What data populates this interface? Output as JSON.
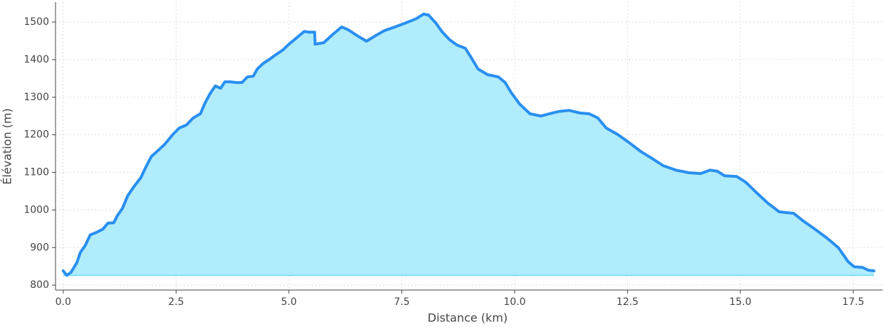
{
  "chart_data": {
    "type": "line",
    "xlabel": "Distance (km)",
    "ylabel": "Élévation (m)",
    "x": [
      0,
      0.08,
      0.17,
      0.3,
      0.38,
      0.49,
      0.6,
      0.73,
      0.88,
      0.99,
      1.12,
      1.2,
      1.31,
      1.43,
      1.56,
      1.72,
      1.83,
      1.95,
      2.1,
      2.25,
      2.43,
      2.57,
      2.73,
      2.88,
      3.04,
      3.14,
      3.26,
      3.37,
      3.49,
      3.58,
      3.71,
      3.83,
      3.96,
      4.08,
      4.21,
      4.3,
      4.43,
      4.56,
      4.71,
      4.87,
      4.98,
      5.14,
      5.34,
      5.45,
      5.57,
      5.58,
      5.77,
      5.98,
      6.17,
      6.32,
      6.51,
      6.72,
      6.92,
      7.11,
      7.35,
      7.55,
      7.82,
      7.98,
      8.09,
      8.25,
      8.4,
      8.56,
      8.72,
      8.91,
      9.03,
      9.19,
      9.4,
      9.64,
      9.79,
      9.92,
      10.11,
      10.34,
      10.58,
      10.77,
      10.97,
      11.21,
      11.45,
      11.65,
      11.84,
      12.03,
      12.28,
      12.55,
      12.79,
      13.02,
      13.29,
      13.57,
      13.86,
      14.12,
      14.33,
      14.49,
      14.65,
      14.92,
      15.12,
      15.34,
      15.6,
      15.86,
      16.18,
      16.38,
      16.65,
      16.92,
      17.17,
      17.39,
      17.52,
      17.71,
      17.83,
      17.96
    ],
    "series": [
      {
        "name": "Élévation",
        "color": "#2a8ff0",
        "fill": "#b0ecfb",
        "values": [
          838,
          826,
          834,
          859,
          887,
          906,
          934,
          940,
          949,
          965,
          966,
          985,
          1004,
          1038,
          1061,
          1086,
          1114,
          1142,
          1158,
          1175,
          1201,
          1218,
          1226,
          1245,
          1256,
          1284,
          1311,
          1330,
          1324,
          1341,
          1341,
          1339,
          1339,
          1354,
          1356,
          1375,
          1390,
          1400,
          1413,
          1426,
          1439,
          1455,
          1475,
          1473,
          1473,
          1441,
          1445,
          1468,
          1487,
          1479,
          1464,
          1449,
          1464,
          1477,
          1487,
          1496,
          1509,
          1521,
          1519,
          1498,
          1473,
          1453,
          1439,
          1430,
          1407,
          1375,
          1360,
          1354,
          1339,
          1313,
          1282,
          1256,
          1250,
          1256,
          1262,
          1265,
          1258,
          1256,
          1245,
          1218,
          1201,
          1178,
          1156,
          1139,
          1118,
          1106,
          1099,
          1097,
          1106,
          1103,
          1091,
          1089,
          1074,
          1048,
          1019,
          995,
          991,
          972,
          949,
          925,
          900,
          862,
          849,
          847,
          840,
          838
        ]
      }
    ],
    "xlim": [
      -0.17,
      18.15
    ],
    "ylim": [
      787,
      1553
    ],
    "xticks": [
      {
        "value": 0,
        "label": "0.0"
      },
      2.5,
      {
        "value": 5,
        "label": "5.0"
      },
      7.5,
      {
        "value": 10,
        "label": "10.0"
      },
      12.5,
      {
        "value": 15,
        "label": "15.0"
      },
      17.5
    ],
    "yticks": [
      800,
      900,
      1000,
      1100,
      1200,
      1300,
      1400,
      1500
    ],
    "grid": true
  }
}
